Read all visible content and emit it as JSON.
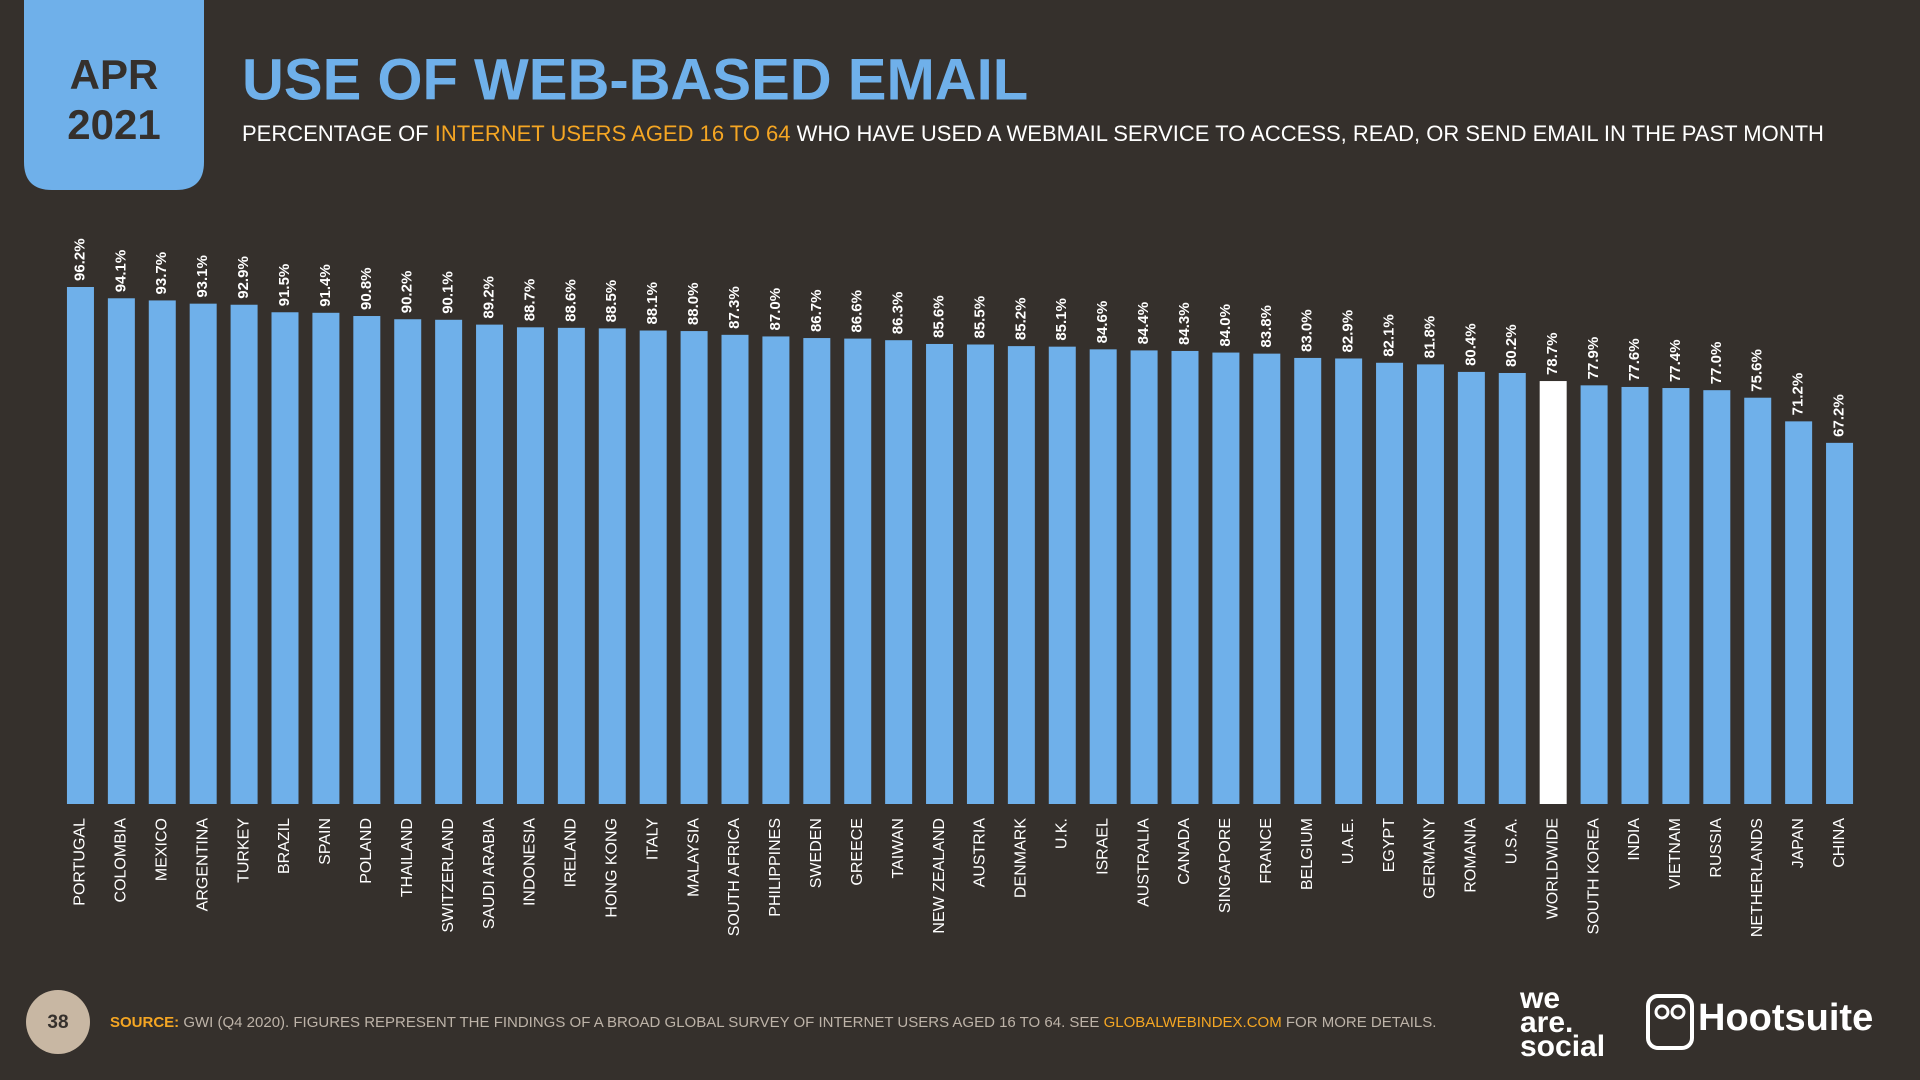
{
  "date_badge": {
    "month": "APR",
    "year": "2021"
  },
  "chart_data": {
    "type": "bar",
    "title": "USE OF WEB-BASED EMAIL",
    "subtitle": [
      "PERCENTAGE OF ",
      "INTERNET USERS AGED 16 TO 64",
      " WHO HAVE USED A WEBMAIL SERVICE TO ACCESS, READ, OR SEND EMAIL IN THE PAST MONTH"
    ],
    "categories": [
      "PORTUGAL",
      "COLOMBIA",
      "MEXICO",
      "ARGENTINA",
      "TURKEY",
      "BRAZIL",
      "SPAIN",
      "POLAND",
      "THAILAND",
      "SWITZERLAND",
      "SAUDI ARABIA",
      "INDONESIA",
      "IRELAND",
      "HONG KONG",
      "ITALY",
      "MALAYSIA",
      "SOUTH AFRICA",
      "PHILIPPINES",
      "SWEDEN",
      "GREECE",
      "TAIWAN",
      "NEW ZEALAND",
      "AUSTRIA",
      "DENMARK",
      "U.K.",
      "ISRAEL",
      "AUSTRALIA",
      "CANADA",
      "SINGAPORE",
      "FRANCE",
      "BELGIUM",
      "U.A.E.",
      "EGYPT",
      "GERMANY",
      "ROMANIA",
      "U.S.A.",
      "WORLDWIDE",
      "SOUTH KOREA",
      "INDIA",
      "VIETNAM",
      "RUSSIA",
      "NETHERLANDS",
      "JAPAN",
      "CHINA"
    ],
    "values": [
      96.2,
      94.1,
      93.7,
      93.1,
      92.9,
      91.5,
      91.4,
      90.8,
      90.2,
      90.1,
      89.2,
      88.7,
      88.6,
      88.5,
      88.1,
      88.0,
      87.3,
      87.0,
      86.7,
      86.6,
      86.3,
      85.6,
      85.5,
      85.2,
      85.1,
      84.6,
      84.4,
      84.3,
      84.0,
      83.8,
      83.0,
      82.9,
      82.1,
      81.8,
      80.4,
      80.2,
      78.7,
      77.9,
      77.6,
      77.4,
      77.0,
      75.6,
      71.2,
      67.2
    ],
    "value_labels": [
      "96.2%",
      "94.1%",
      "93.7%",
      "93.1%",
      "92.9%",
      "91.5%",
      "91.4%",
      "90.8%",
      "90.2%",
      "90.1%",
      "89.2%",
      "88.7%",
      "88.6%",
      "88.5%",
      "88.1%",
      "88.0%",
      "87.3%",
      "87.0%",
      "86.7%",
      "86.6%",
      "86.3%",
      "85.6%",
      "85.5%",
      "85.2%",
      "85.1%",
      "84.6%",
      "84.4%",
      "84.3%",
      "84.0%",
      "83.8%",
      "83.0%",
      "82.9%",
      "82.1%",
      "81.8%",
      "80.4%",
      "80.2%",
      "78.7%",
      "77.9%",
      "77.6%",
      "77.4%",
      "77.0%",
      "75.6%",
      "71.2%",
      "67.2%"
    ],
    "colors": [
      "#6fb0ea",
      "#6fb0ea",
      "#6fb0ea",
      "#6fb0ea",
      "#6fb0ea",
      "#6fb0ea",
      "#6fb0ea",
      "#6fb0ea",
      "#6fb0ea",
      "#6fb0ea",
      "#6fb0ea",
      "#6fb0ea",
      "#6fb0ea",
      "#6fb0ea",
      "#6fb0ea",
      "#6fb0ea",
      "#6fb0ea",
      "#6fb0ea",
      "#6fb0ea",
      "#6fb0ea",
      "#6fb0ea",
      "#6fb0ea",
      "#6fb0ea",
      "#6fb0ea",
      "#6fb0ea",
      "#6fb0ea",
      "#6fb0ea",
      "#6fb0ea",
      "#6fb0ea",
      "#6fb0ea",
      "#6fb0ea",
      "#6fb0ea",
      "#6fb0ea",
      "#6fb0ea",
      "#6fb0ea",
      "#6fb0ea",
      "#ffffff",
      "#6fb0ea",
      "#6fb0ea",
      "#6fb0ea",
      "#6fb0ea",
      "#6fb0ea",
      "#6fb0ea",
      "#6fb0ea"
    ]
  },
  "footer": {
    "page": "38",
    "source": [
      "SOURCE:",
      " GWI (Q4 2020). FIGURES REPRESENT THE FINDINGS OF A BROAD GLOBAL SURVEY OF INTERNET USERS AGED 16 TO 64. SEE ",
      "GLOBALWEBINDEX.COM",
      " FOR MORE DETAILS."
    ],
    "logos": [
      "we",
      "are.",
      "social",
      "Hootsuite"
    ]
  }
}
